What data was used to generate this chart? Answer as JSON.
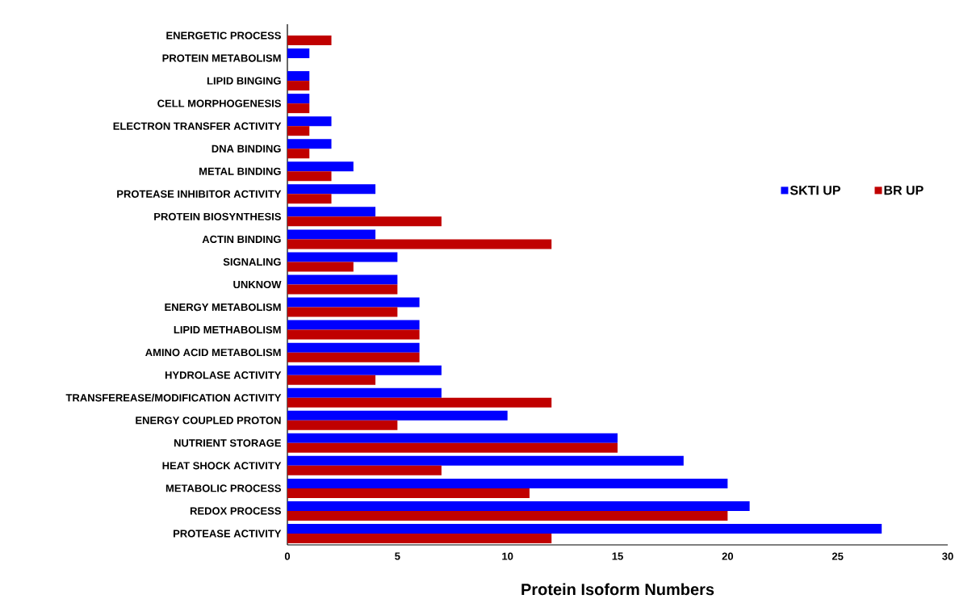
{
  "chart_data": {
    "type": "bar",
    "orientation": "horizontal",
    "xlabel": "Protein Isoform Numbers",
    "categories": [
      "ENERGETIC PROCESS",
      "PROTEIN METABOLISM",
      "LIPID BINGING",
      "CELL MORPHOGENESIS",
      "ELECTRON TRANSFER ACTIVITY",
      "DNA BINDING",
      "METAL BINDING",
      "PROTEASE INHIBITOR ACTIVITY",
      "PROTEIN BIOSYNTHESIS",
      "ACTIN BINDING",
      "SIGNALING",
      "UNKNOW",
      "ENERGY METABOLISM",
      "LIPID METHABOLISM",
      "AMINO ACID METABOLISM",
      "HYDROLASE ACTIVITY",
      "TRANSFEREASE/MODIFICATION ACTIVITY",
      "ENERGY COUPLED PROTON",
      "NUTRIENT STORAGE",
      "HEAT SHOCK ACTIVITY",
      "METABOLIC PROCESS",
      "REDOX PROCESS",
      "PROTEASE ACTIVITY"
    ],
    "series": [
      {
        "name": "SKTI UP",
        "color": "#0000ff",
        "values": [
          0,
          1,
          1,
          1,
          2,
          2,
          3,
          4,
          4,
          4,
          5,
          5,
          6,
          6,
          6,
          7,
          7,
          10,
          15,
          18,
          20,
          21,
          27
        ]
      },
      {
        "name": "BR UP",
        "color": "#c00000",
        "values": [
          2,
          0,
          1,
          1,
          1,
          1,
          2,
          2,
          7,
          12,
          3,
          5,
          5,
          6,
          6,
          4,
          12,
          5,
          15,
          7,
          11,
          20,
          12
        ]
      }
    ],
    "xlim": [
      0,
      30
    ],
    "xticks": [
      0,
      5,
      10,
      15,
      20,
      25,
      30
    ],
    "grid": false,
    "legend": "right"
  }
}
